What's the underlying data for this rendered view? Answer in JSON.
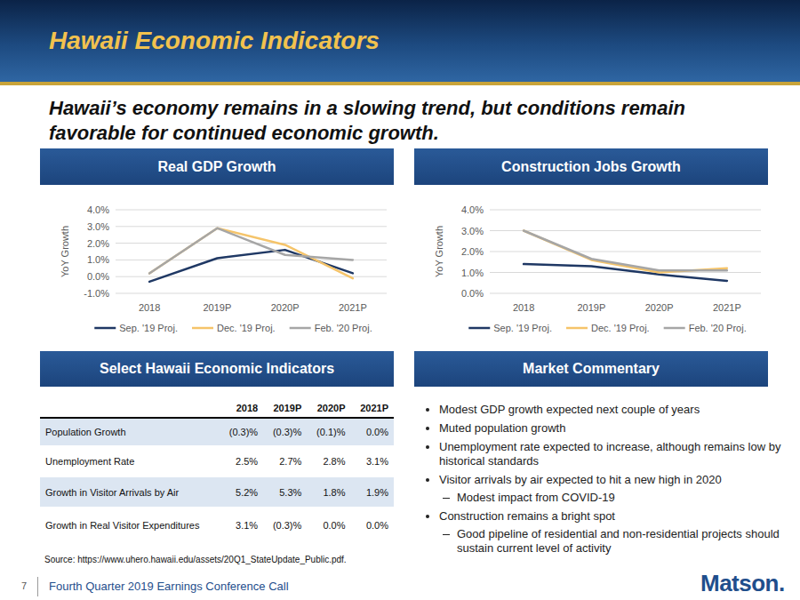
{
  "header": {
    "title": "Hawaii Economic Indicators",
    "subtitle": "Hawaii’s economy remains in a slowing trend, but conditions remain favorable for continued economic growth."
  },
  "chart_data": [
    {
      "type": "line",
      "title": "Real GDP Growth",
      "y_label": "YoY Growth",
      "categories": [
        "2018",
        "2019P",
        "2020P",
        "2021P"
      ],
      "series": [
        {
          "name": "Sep. '19 Proj.",
          "color": "#1f3864",
          "values": [
            -0.3,
            1.1,
            1.6,
            0.2
          ]
        },
        {
          "name": "Dec. '19 Proj.",
          "color": "#f5c46a",
          "values": [
            0.2,
            2.9,
            1.9,
            -0.1
          ]
        },
        {
          "name": "Feb. '20 Proj.",
          "color": "#a6a6a6",
          "values": [
            0.2,
            2.9,
            1.3,
            1.0
          ]
        }
      ],
      "ylim": [
        -1,
        4
      ],
      "yticks": [
        {
          "value": -1,
          "label": "-1.0%"
        },
        {
          "value": 0,
          "label": "0.0%"
        },
        {
          "value": 1,
          "label": "1.0%"
        },
        {
          "value": 2,
          "label": "2.0%"
        },
        {
          "value": 3,
          "label": "3.0%"
        },
        {
          "value": 4,
          "label": "4.0%"
        }
      ],
      "grid": true,
      "legend": "bottom"
    },
    {
      "type": "line",
      "title": "Construction Jobs Growth",
      "y_label": "YoY Growth",
      "categories": [
        "2018",
        "2019P",
        "2020P",
        "2021P"
      ],
      "series": [
        {
          "name": "Sep. '19 Proj.",
          "color": "#1f3864",
          "values": [
            1.4,
            1.3,
            0.9,
            0.6
          ]
        },
        {
          "name": "Dec. '19 Proj.",
          "color": "#f5c46a",
          "values": [
            3.0,
            1.6,
            1.0,
            1.2
          ]
        },
        {
          "name": "Feb. '20 Proj.",
          "color": "#a6a6a6",
          "values": [
            3.0,
            1.65,
            1.1,
            1.1
          ]
        }
      ],
      "ylim": [
        0,
        4
      ],
      "yticks": [
        {
          "value": 0,
          "label": "0.0%"
        },
        {
          "value": 1,
          "label": "1.0%"
        },
        {
          "value": 2,
          "label": "2.0%"
        },
        {
          "value": 3,
          "label": "3.0%"
        },
        {
          "value": 4,
          "label": "4.0%"
        }
      ],
      "grid": true,
      "legend": "bottom"
    }
  ],
  "panels": {
    "table_title": "Select Hawaii Economic Indicators",
    "commentary_title": "Market Commentary"
  },
  "table": {
    "columns": [
      "2018",
      "2019P",
      "2020P",
      "2021P"
    ],
    "rows": [
      {
        "label": "Population Growth",
        "values": [
          "(0.3)%",
          "(0.3)%",
          "(0.1)%",
          "0.0%"
        ]
      },
      {
        "label": "Unemployment Rate",
        "values": [
          "2.5%",
          "2.7%",
          "2.8%",
          "3.1%"
        ]
      },
      {
        "label": "Growth in Visitor Arrivals by Air",
        "values": [
          "5.2%",
          "5.3%",
          "1.8%",
          "1.9%"
        ]
      },
      {
        "label": "Growth in Real Visitor Expenditures",
        "values": [
          "3.1%",
          "(0.3)%",
          "0.0%",
          "0.0%"
        ]
      }
    ]
  },
  "source": "Source: https://www.uhero.hawaii.edu/assets/20Q1_StateUpdate_Public.pdf.",
  "commentary": {
    "bullets": [
      {
        "text": "Modest GDP growth expected next couple of years"
      },
      {
        "text": "Muted population growth"
      },
      {
        "text": "Unemployment rate expected to increase, although remains low by historical standards"
      },
      {
        "text": "Visitor arrivals by air expected to hit a new high in 2020",
        "sub": [
          "Modest impact from COVID-19"
        ]
      },
      {
        "text": "Construction remains a bright spot",
        "sub": [
          "Good pipeline of residential and non-residential projects should sustain current level of activity"
        ]
      }
    ]
  },
  "footer": {
    "page": "7",
    "text": "Fourth Quarter 2019 Earnings Conference Call",
    "logo": "Matson."
  }
}
